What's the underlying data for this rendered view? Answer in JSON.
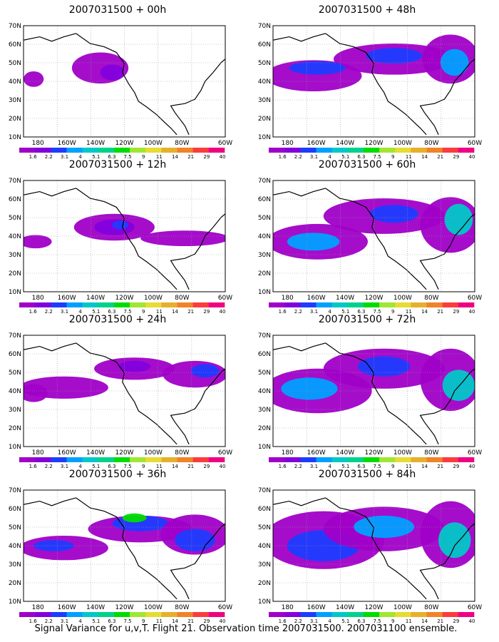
{
  "caption": "Signal Variance for u,v,T. Flight 21. Observation time 2007031500. 2007031100 ensemble.",
  "axes": {
    "lon_labels": [
      "180",
      "160W",
      "140W",
      "120W",
      "100W",
      "80W",
      "60W"
    ],
    "lat_labels": [
      "70N",
      "60N",
      "50N",
      "40N",
      "30N",
      "20N",
      "10N"
    ]
  },
  "colorbar": {
    "labels": [
      "1.6",
      "2.2",
      "3.1",
      "4",
      "5.1",
      "6.3",
      "7.5",
      "9",
      "11",
      "14",
      "21",
      "29",
      "40"
    ],
    "colors": [
      "#a000c8",
      "#8200dc",
      "#1e3cff",
      "#00a0ff",
      "#00c8c8",
      "#00d28c",
      "#00dc00",
      "#a0e632",
      "#e6dc32",
      "#e6af2d",
      "#f08228",
      "#fa3c3c",
      "#f00082"
    ]
  },
  "panels": [
    {
      "id": "p00",
      "title": "2007031500 + 00h"
    },
    {
      "id": "p48",
      "title": "2007031500 + 48h"
    },
    {
      "id": "p12",
      "title": "2007031500 + 12h"
    },
    {
      "id": "p60",
      "title": "2007031500 + 60h"
    },
    {
      "id": "p24",
      "title": "2007031500 + 24h"
    },
    {
      "id": "p72",
      "title": "2007031500 + 72h"
    },
    {
      "id": "p36",
      "title": "2007031500 + 36h"
    },
    {
      "id": "p84",
      "title": "2007031500 + 84h"
    }
  ]
}
